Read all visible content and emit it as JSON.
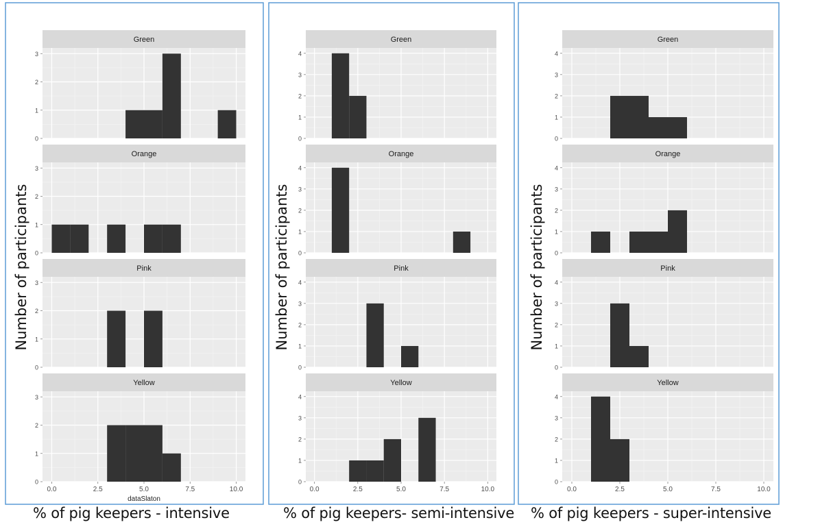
{
  "colors": {
    "panel_bg": "#ebebeb",
    "strip_bg": "#d9d9d9",
    "bar_fill": "#333333",
    "grid_major": "#ffffff",
    "grid_minor": "#f3f3f3",
    "panel_border": "#5b9bd5",
    "tick_text": "#4d4d4d"
  },
  "chart_data": [
    {
      "type": "bar",
      "subtype": "faceted-histogram",
      "ylabel": "Number of participants",
      "xlabel": "% of pig keepers - intensive",
      "axis_title_partial": "dataSlaton",
      "xlim": [
        -0.5,
        10.5
      ],
      "xticks": [
        "0.0",
        "2.5",
        "5.0",
        "7.5",
        "10.0"
      ],
      "bin_width": 1,
      "facets": [
        {
          "label": "Green",
          "ylim": [
            0,
            3.2
          ],
          "yticks": [
            "0",
            "1",
            "2",
            "3"
          ],
          "bins": [
            {
              "x0": 4,
              "x1": 5,
              "count": 1
            },
            {
              "x0": 5,
              "x1": 6,
              "count": 1
            },
            {
              "x0": 6,
              "x1": 7,
              "count": 3
            },
            {
              "x0": 9,
              "x1": 10,
              "count": 1
            }
          ]
        },
        {
          "label": "Orange",
          "ylim": [
            0,
            3.2
          ],
          "yticks": [
            "0",
            "1",
            "2",
            "3"
          ],
          "bins": [
            {
              "x0": 0,
              "x1": 1,
              "count": 1
            },
            {
              "x0": 1,
              "x1": 2,
              "count": 1
            },
            {
              "x0": 3,
              "x1": 4,
              "count": 1
            },
            {
              "x0": 5,
              "x1": 6,
              "count": 1
            },
            {
              "x0": 6,
              "x1": 7,
              "count": 1
            }
          ]
        },
        {
          "label": "Pink",
          "ylim": [
            0,
            3.2
          ],
          "yticks": [
            "0",
            "1",
            "2",
            "3"
          ],
          "bins": [
            {
              "x0": 3,
              "x1": 4,
              "count": 2
            },
            {
              "x0": 5,
              "x1": 6,
              "count": 2
            }
          ]
        },
        {
          "label": "Yellow",
          "ylim": [
            0,
            3.2
          ],
          "yticks": [
            "0",
            "1",
            "2",
            "3"
          ],
          "bins": [
            {
              "x0": 3,
              "x1": 4,
              "count": 2
            },
            {
              "x0": 4,
              "x1": 5,
              "count": 2
            },
            {
              "x0": 5,
              "x1": 6,
              "count": 2
            },
            {
              "x0": 6,
              "x1": 7,
              "count": 1
            }
          ]
        }
      ]
    },
    {
      "type": "bar",
      "subtype": "faceted-histogram",
      "ylabel": "Number of participants",
      "xlabel": "% of pig keepers- semi-intensive",
      "xlim": [
        -0.5,
        10.5
      ],
      "xticks": [
        "0.0",
        "2.5",
        "5.0",
        "7.5",
        "10.0"
      ],
      "bin_width": 1,
      "facets": [
        {
          "label": "Green",
          "ylim": [
            0,
            4.25
          ],
          "yticks": [
            "0",
            "1",
            "2",
            "3",
            "4"
          ],
          "bins": [
            {
              "x0": 1,
              "x1": 2,
              "count": 4
            },
            {
              "x0": 2,
              "x1": 3,
              "count": 2
            }
          ]
        },
        {
          "label": "Orange",
          "ylim": [
            0,
            4.25
          ],
          "yticks": [
            "0",
            "1",
            "2",
            "3",
            "4"
          ],
          "bins": [
            {
              "x0": 1,
              "x1": 2,
              "count": 4
            },
            {
              "x0": 8,
              "x1": 9,
              "count": 1
            }
          ]
        },
        {
          "label": "Pink",
          "ylim": [
            0,
            4.25
          ],
          "yticks": [
            "0",
            "1",
            "2",
            "3",
            "4"
          ],
          "bins": [
            {
              "x0": 3,
              "x1": 4,
              "count": 3
            },
            {
              "x0": 5,
              "x1": 6,
              "count": 1
            }
          ]
        },
        {
          "label": "Yellow",
          "ylim": [
            0,
            4.25
          ],
          "yticks": [
            "0",
            "1",
            "2",
            "3",
            "4"
          ],
          "bins": [
            {
              "x0": 2,
              "x1": 3,
              "count": 1
            },
            {
              "x0": 3,
              "x1": 4,
              "count": 1
            },
            {
              "x0": 4,
              "x1": 5,
              "count": 2
            },
            {
              "x0": 6,
              "x1": 7,
              "count": 3
            }
          ]
        }
      ]
    },
    {
      "type": "bar",
      "subtype": "faceted-histogram",
      "ylabel": "Number of participants",
      "xlabel": "% of pig keepers - super-intensive",
      "xlim": [
        -0.5,
        10.5
      ],
      "xticks": [
        "0.0",
        "2.5",
        "5.0",
        "7.5",
        "10.0"
      ],
      "bin_width": 1,
      "facets": [
        {
          "label": "Green",
          "ylim": [
            0,
            4.25
          ],
          "yticks": [
            "0",
            "1",
            "2",
            "3",
            "4"
          ],
          "bins": [
            {
              "x0": 2,
              "x1": 3,
              "count": 2
            },
            {
              "x0": 3,
              "x1": 4,
              "count": 2
            },
            {
              "x0": 4,
              "x1": 5,
              "count": 1
            },
            {
              "x0": 5,
              "x1": 6,
              "count": 1
            }
          ]
        },
        {
          "label": "Orange",
          "ylim": [
            0,
            4.25
          ],
          "yticks": [
            "0",
            "1",
            "2",
            "3",
            "4"
          ],
          "bins": [
            {
              "x0": 1,
              "x1": 2,
              "count": 1
            },
            {
              "x0": 3,
              "x1": 4,
              "count": 1
            },
            {
              "x0": 4,
              "x1": 5,
              "count": 1
            },
            {
              "x0": 5,
              "x1": 6,
              "count": 2
            }
          ]
        },
        {
          "label": "Pink",
          "ylim": [
            0,
            4.25
          ],
          "yticks": [
            "0",
            "1",
            "2",
            "3",
            "4"
          ],
          "bins": [
            {
              "x0": 2,
              "x1": 3,
              "count": 3
            },
            {
              "x0": 3,
              "x1": 4,
              "count": 1
            }
          ]
        },
        {
          "label": "Yellow",
          "ylim": [
            0,
            4.25
          ],
          "yticks": [
            "0",
            "1",
            "2",
            "3",
            "4"
          ],
          "bins": [
            {
              "x0": 1,
              "x1": 2,
              "count": 4
            },
            {
              "x0": 2,
              "x1": 3,
              "count": 2
            }
          ]
        }
      ]
    }
  ]
}
